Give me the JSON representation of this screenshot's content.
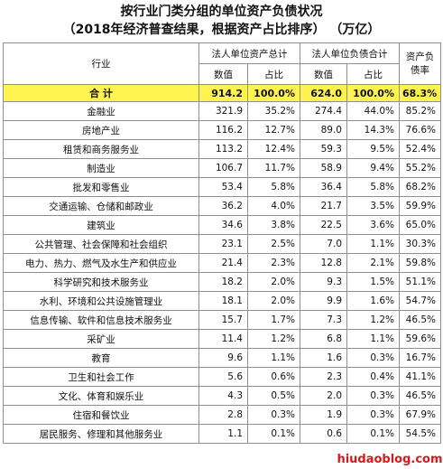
{
  "title": {
    "line1": "按行业门类分组的单位资产负债状况",
    "line2": "（2018年经济普查结果，根据资产占比排序）  （万亿）"
  },
  "header": {
    "industry": "行业",
    "assets_group": "法人单位资产总计",
    "liabilities_group": "法人单位负债合计",
    "ratio": "资产负债率",
    "value": "数值",
    "share": "占比"
  },
  "total": {
    "name": "合  计",
    "assets": "914.2",
    "assets_share": "100.0%",
    "liabilities": "624.0",
    "liabilities_share": "100.0%",
    "ratio": "68.3%"
  },
  "rows": [
    {
      "name": "金融业",
      "assets": "321.9",
      "assets_share": "35.2%",
      "liabilities": "274.4",
      "liabilities_share": "44.0%",
      "ratio": "85.2%"
    },
    {
      "name": "房地产业",
      "assets": "116.2",
      "assets_share": "12.7%",
      "liabilities": "89.0",
      "liabilities_share": "14.3%",
      "ratio": "76.6%"
    },
    {
      "name": "租赁和商务服务业",
      "assets": "113.2",
      "assets_share": "12.4%",
      "liabilities": "59.3",
      "liabilities_share": "9.5%",
      "ratio": "52.4%"
    },
    {
      "name": "制造业",
      "assets": "106.7",
      "assets_share": "11.7%",
      "liabilities": "58.9",
      "liabilities_share": "9.4%",
      "ratio": "55.2%"
    },
    {
      "name": "批发和零售业",
      "assets": "53.4",
      "assets_share": "5.8%",
      "liabilities": "36.4",
      "liabilities_share": "5.8%",
      "ratio": "68.2%"
    },
    {
      "name": "交通运输、仓储和邮政业",
      "assets": "36.2",
      "assets_share": "4.0%",
      "liabilities": "21.7",
      "liabilities_share": "3.5%",
      "ratio": "59.9%"
    },
    {
      "name": "建筑业",
      "assets": "34.6",
      "assets_share": "3.8%",
      "liabilities": "22.5",
      "liabilities_share": "3.6%",
      "ratio": "65.0%"
    },
    {
      "name": "公共管理、社会保障和社会组织",
      "assets": "23.1",
      "assets_share": "2.5%",
      "liabilities": "7.0",
      "liabilities_share": "1.1%",
      "ratio": "30.3%"
    },
    {
      "name": "电力、热力、燃气及水生产和供应业",
      "assets": "21.4",
      "assets_share": "2.3%",
      "liabilities": "12.8",
      "liabilities_share": "2.1%",
      "ratio": "59.8%"
    },
    {
      "name": "科学研究和技术服务业",
      "assets": "18.2",
      "assets_share": "2.0%",
      "liabilities": "9.3",
      "liabilities_share": "1.5%",
      "ratio": "51.1%"
    },
    {
      "name": "水利、环境和公共设施管理业",
      "assets": "18.1",
      "assets_share": "2.0%",
      "liabilities": "9.9",
      "liabilities_share": "1.6%",
      "ratio": "54.7%"
    },
    {
      "name": "信息传输、软件和信息技术服务业",
      "assets": "15.7",
      "assets_share": "1.7%",
      "liabilities": "7.3",
      "liabilities_share": "1.2%",
      "ratio": "46.5%"
    },
    {
      "name": "采矿业",
      "assets": "11.4",
      "assets_share": "1.2%",
      "liabilities": "6.8",
      "liabilities_share": "1.1%",
      "ratio": "59.6%"
    },
    {
      "name": "教育",
      "assets": "9.6",
      "assets_share": "1.1%",
      "liabilities": "1.6",
      "liabilities_share": "0.3%",
      "ratio": "16.7%"
    },
    {
      "name": "卫生和社会工作",
      "assets": "5.6",
      "assets_share": "0.6%",
      "liabilities": "2.3",
      "liabilities_share": "0.4%",
      "ratio": "41.1%"
    },
    {
      "name": "文化、体育和娱乐业",
      "assets": "4.3",
      "assets_share": "0.5%",
      "liabilities": "2.0",
      "liabilities_share": "0.3%",
      "ratio": "46.5%"
    },
    {
      "name": "住宿和餐饮业",
      "assets": "2.8",
      "assets_share": "0.3%",
      "liabilities": "1.9",
      "liabilities_share": "0.3%",
      "ratio": "67.9%"
    },
    {
      "name": "居民服务、修理和其他服务业",
      "assets": "1.1",
      "assets_share": "0.1%",
      "liabilities": "0.6",
      "liabilities_share": "0.1%",
      "ratio": "54.5%"
    }
  ],
  "watermark": "hiudaoblog.com",
  "colors": {
    "total_row": "#fff44f",
    "watermark": "#d41a1a",
    "border": "#8f8f8f"
  }
}
